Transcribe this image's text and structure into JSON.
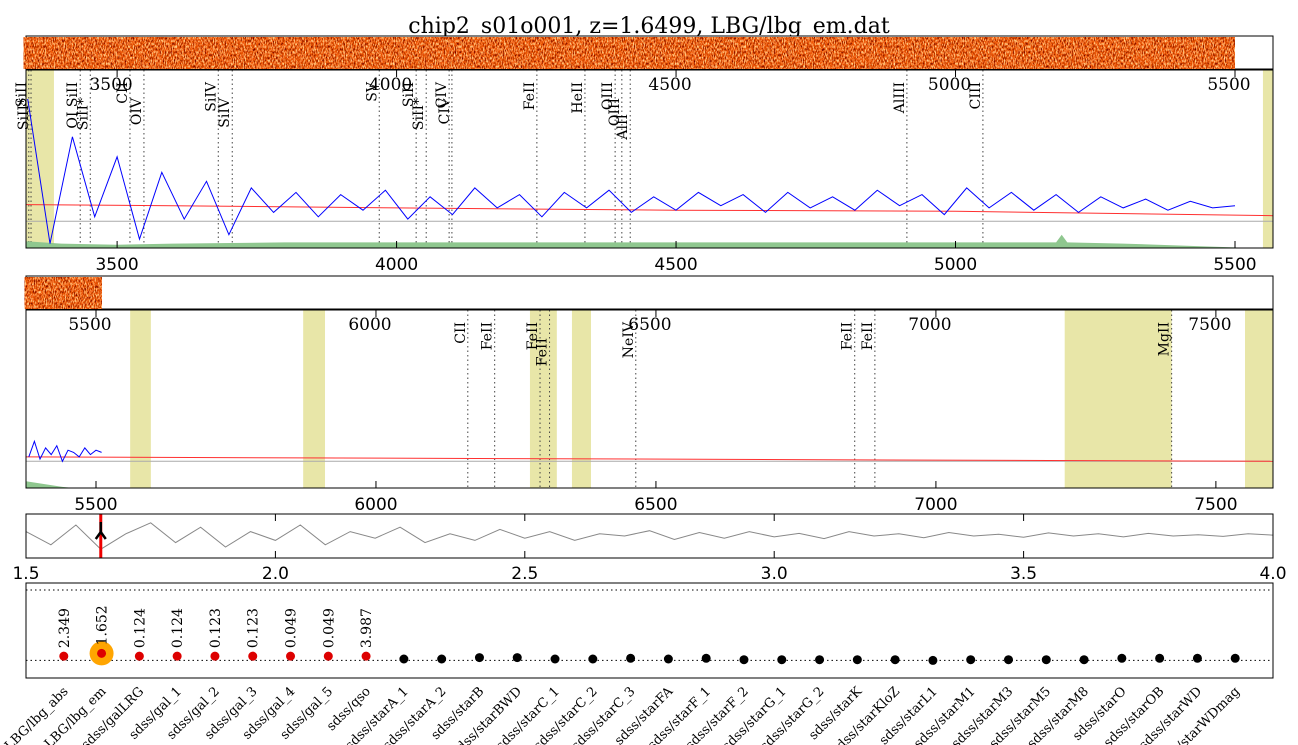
{
  "title": "chip2_s01o001, z=1.6499, LBG/lbg_em.dat",
  "chart_data": [
    {
      "type": "line",
      "strip": true,
      "top_labels": true,
      "zero_line": true,
      "xlim": [
        3337,
        5568
      ],
      "ylim": [
        -1.2,
        6.8
      ],
      "xticks": [
        3500,
        4000,
        4500,
        5000,
        5500
      ],
      "shaded": [
        [
          3337,
          3387
        ],
        [
          5550,
          5568
        ]
      ],
      "lines": [
        {
          "text": "SiII",
          "x": 3342
        },
        {
          "text": "SiII*",
          "x": 3346
        },
        {
          "text": "OI SiII",
          "x": 3434
        },
        {
          "text": "SiII*",
          "x": 3452
        },
        {
          "text": "CII",
          "x": 3523
        },
        {
          "text": "OIV",
          "x": 3548
        },
        {
          "text": "SiIV",
          "x": 3681
        },
        {
          "text": "SiIV",
          "x": 3706
        },
        {
          "text": "SV",
          "x": 3969
        },
        {
          "text": "SiII",
          "x": 4035
        },
        {
          "text": "SiII*",
          "x": 4053
        },
        {
          "text": "CIV",
          "x": 4094
        },
        {
          "text": "CIV",
          "x": 4099
        },
        {
          "text": "FeII",
          "x": 4251
        },
        {
          "text": "HeII",
          "x": 4337
        },
        {
          "text": "OIII",
          "x": 4391
        },
        {
          "text": "OIII",
          "x": 4403
        },
        {
          "text": "AlII",
          "x": 4418
        },
        {
          "text": "AlIII",
          "x": 4913
        },
        {
          "text": "CIII",
          "x": 5049
        }
      ],
      "series": [
        {
          "name": "flux",
          "color": "#0000ff",
          "x": [
            3340,
            3380,
            3420,
            3460,
            3500,
            3540,
            3580,
            3620,
            3660,
            3700,
            3740,
            3780,
            3820,
            3860,
            3900,
            3940,
            3980,
            4020,
            4060,
            4100,
            4140,
            4180,
            4220,
            4260,
            4300,
            4340,
            4380,
            4420,
            4460,
            4500,
            4540,
            4580,
            4620,
            4660,
            4700,
            4740,
            4780,
            4820,
            4860,
            4900,
            4940,
            4980,
            5020,
            5060,
            5100,
            5140,
            5180,
            5220,
            5260,
            5300,
            5340,
            5380,
            5420,
            5460,
            5500
          ],
          "values": [
            5.5,
            -1.0,
            3.8,
            0.2,
            2.9,
            -0.8,
            2.2,
            0.1,
            1.8,
            -0.6,
            1.5,
            0.4,
            1.3,
            0.2,
            1.2,
            0.5,
            1.4,
            0.1,
            1.1,
            0.3,
            1.5,
            0.6,
            1.2,
            0.2,
            1.3,
            0.6,
            1.4,
            0.4,
            1.1,
            0.5,
            1.3,
            0.7,
            1.2,
            0.4,
            1.3,
            0.6,
            1.1,
            0.5,
            1.4,
            0.7,
            1.2,
            0.3,
            1.5,
            0.6,
            1.3,
            0.5,
            1.2,
            0.4,
            1.1,
            0.6,
            1.0,
            0.5,
            0.9,
            0.6,
            0.7
          ]
        },
        {
          "name": "model",
          "color": "#ff3030",
          "x": [
            3337,
            3600,
            4000,
            4500,
            5000,
            5568
          ],
          "values": [
            0.75,
            0.7,
            0.6,
            0.5,
            0.45,
            0.25
          ]
        },
        {
          "name": "noise",
          "color": "#8fc78f",
          "fill": true,
          "x": [
            3337,
            3400,
            3500,
            3600,
            3800,
            4000,
            4500,
            5000,
            5180,
            5190,
            5200,
            5300,
            5530
          ],
          "values": [
            -0.9,
            -1.0,
            -1.05,
            -1.0,
            -0.95,
            -0.95,
            -0.95,
            -0.95,
            -0.95,
            -0.6,
            -0.95,
            -1.0,
            -1.2
          ]
        }
      ]
    },
    {
      "type": "line",
      "strip": true,
      "top_labels": true,
      "zero_line": true,
      "xlim": [
        5375,
        7602
      ],
      "ylim": [
        -1.2,
        6.8
      ],
      "xticks": [
        5500,
        6000,
        6500,
        7000,
        7500
      ],
      "shaded": [
        [
          5561,
          5598
        ],
        [
          5870,
          5909
        ],
        [
          6275,
          6323
        ],
        [
          6350,
          6384
        ],
        [
          7230,
          7421
        ],
        [
          7552,
          7602
        ]
      ],
      "lines": [
        {
          "text": "CII",
          "x": 6164
        },
        {
          "text": "FeII",
          "x": 6212
        },
        {
          "text": "FeII",
          "x": 6293
        },
        {
          "text": "FeII",
          "x": 6310
        },
        {
          "text": "NeIV",
          "x": 6464
        },
        {
          "text": "FeII",
          "x": 6855
        },
        {
          "text": "FeII",
          "x": 6891
        },
        {
          "text": "MgII",
          "x": 7421
        }
      ],
      "series": [
        {
          "name": "flux",
          "color": "#0000ff",
          "x": [
            5380,
            5390,
            5400,
            5410,
            5420,
            5430,
            5440,
            5450,
            5460,
            5470,
            5480,
            5490,
            5500,
            5510
          ],
          "values": [
            0.2,
            0.9,
            0.1,
            0.6,
            0.3,
            0.7,
            0.0,
            0.5,
            0.4,
            0.2,
            0.6,
            0.3,
            0.5,
            0.4
          ]
        },
        {
          "name": "model",
          "color": "#ff3030",
          "x": [
            5375,
            7602
          ],
          "values": [
            0.2,
            0.0
          ]
        },
        {
          "name": "noise",
          "color": "#8fc78f",
          "fill": true,
          "x": [
            5375,
            5440,
            5460
          ],
          "values": [
            -0.9,
            -1.15,
            -1.2
          ]
        }
      ]
    },
    {
      "type": "line",
      "xlim": [
        1.5,
        4.0
      ],
      "ylim": [
        0,
        1
      ],
      "marker_x": 1.6499,
      "xticks": [
        1.5,
        {
          "value": 2,
          "label": "2.0"
        },
        2.5,
        {
          "value": 3,
          "label": "3.0"
        },
        3.5,
        {
          "value": 4,
          "label": "4.0"
        }
      ],
      "series": [
        {
          "name": "chi2",
          "color": "#888888",
          "x": [
            1.5,
            1.55,
            1.6,
            1.65,
            1.7,
            1.75,
            1.8,
            1.85,
            1.9,
            1.95,
            2,
            2.05,
            2.1,
            2.15,
            2.2,
            2.25,
            2.3,
            2.35,
            2.4,
            2.45,
            2.5,
            2.55,
            2.6,
            2.65,
            2.7,
            2.75,
            2.8,
            2.85,
            2.9,
            2.95,
            3,
            3.05,
            3.1,
            3.15,
            3.2,
            3.25,
            3.3,
            3.35,
            3.4,
            3.45,
            3.5,
            3.55,
            3.6,
            3.65,
            3.7,
            3.75,
            3.8,
            3.85,
            3.9,
            3.95,
            4
          ],
          "values": [
            0.6,
            0.3,
            0.75,
            0.2,
            0.55,
            0.8,
            0.35,
            0.7,
            0.25,
            0.6,
            0.4,
            0.75,
            0.3,
            0.6,
            0.45,
            0.7,
            0.35,
            0.55,
            0.4,
            0.65,
            0.45,
            0.6,
            0.4,
            0.55,
            0.5,
            0.62,
            0.42,
            0.58,
            0.45,
            0.6,
            0.48,
            0.56,
            0.44,
            0.6,
            0.5,
            0.55,
            0.46,
            0.58,
            0.5,
            0.54,
            0.47,
            0.57,
            0.5,
            0.55,
            0.48,
            0.56,
            0.5,
            0.53,
            0.49,
            0.55,
            0.52
          ]
        }
      ]
    },
    {
      "type": "scatter",
      "xlim": [
        -1,
        32
      ],
      "ylim": [
        -0.25,
        1.1
      ],
      "hlines": [
        0,
        1
      ],
      "color": "#000000",
      "labeled_color": "#dd0000",
      "selected": 1,
      "selected_color": "#ffa500",
      "categories": [
        "LBG/lbg_abs",
        "LBG/lbg_em",
        "sdss/galLRG",
        "sdss/gal_1",
        "sdss/gal_2",
        "sdss/gal_3",
        "sdss/gal_4",
        "sdss/gal_5",
        "sdss/qso",
        "sdss/starA_1",
        "sdss/starA_2",
        "sdss/starB",
        "sdss/starBWD",
        "sdss/starC_1",
        "sdss/starC_2",
        "sdss/starC_3",
        "sdss/starFA",
        "sdss/starF_1",
        "sdss/starF_2",
        "sdss/starG_1",
        "sdss/starG_2",
        "sdss/starK",
        "sdss/starKloZ",
        "sdss/starL1",
        "sdss/starM1",
        "sdss/starM3",
        "sdss/starM5",
        "sdss/starM8",
        "sdss/starO",
        "sdss/starOB",
        "sdss/starWD",
        "sdss/starWDmag"
      ],
      "values": [
        0.06,
        0.1,
        0.06,
        0.06,
        0.06,
        0.06,
        0.06,
        0.06,
        0.06,
        0.02,
        0.02,
        0.04,
        0.04,
        0.02,
        0.02,
        0.03,
        0.02,
        0.03,
        0.01,
        0.01,
        0.01,
        0.01,
        0.01,
        0.0,
        0.01,
        0.01,
        0.01,
        0.01,
        0.03,
        0.03,
        0.03,
        0.03
      ],
      "scores": [
        "2.349",
        "1.652",
        "0.124",
        "0.124",
        "0.123",
        "0.123",
        "0.049",
        "0.049",
        "3.987"
      ]
    }
  ]
}
